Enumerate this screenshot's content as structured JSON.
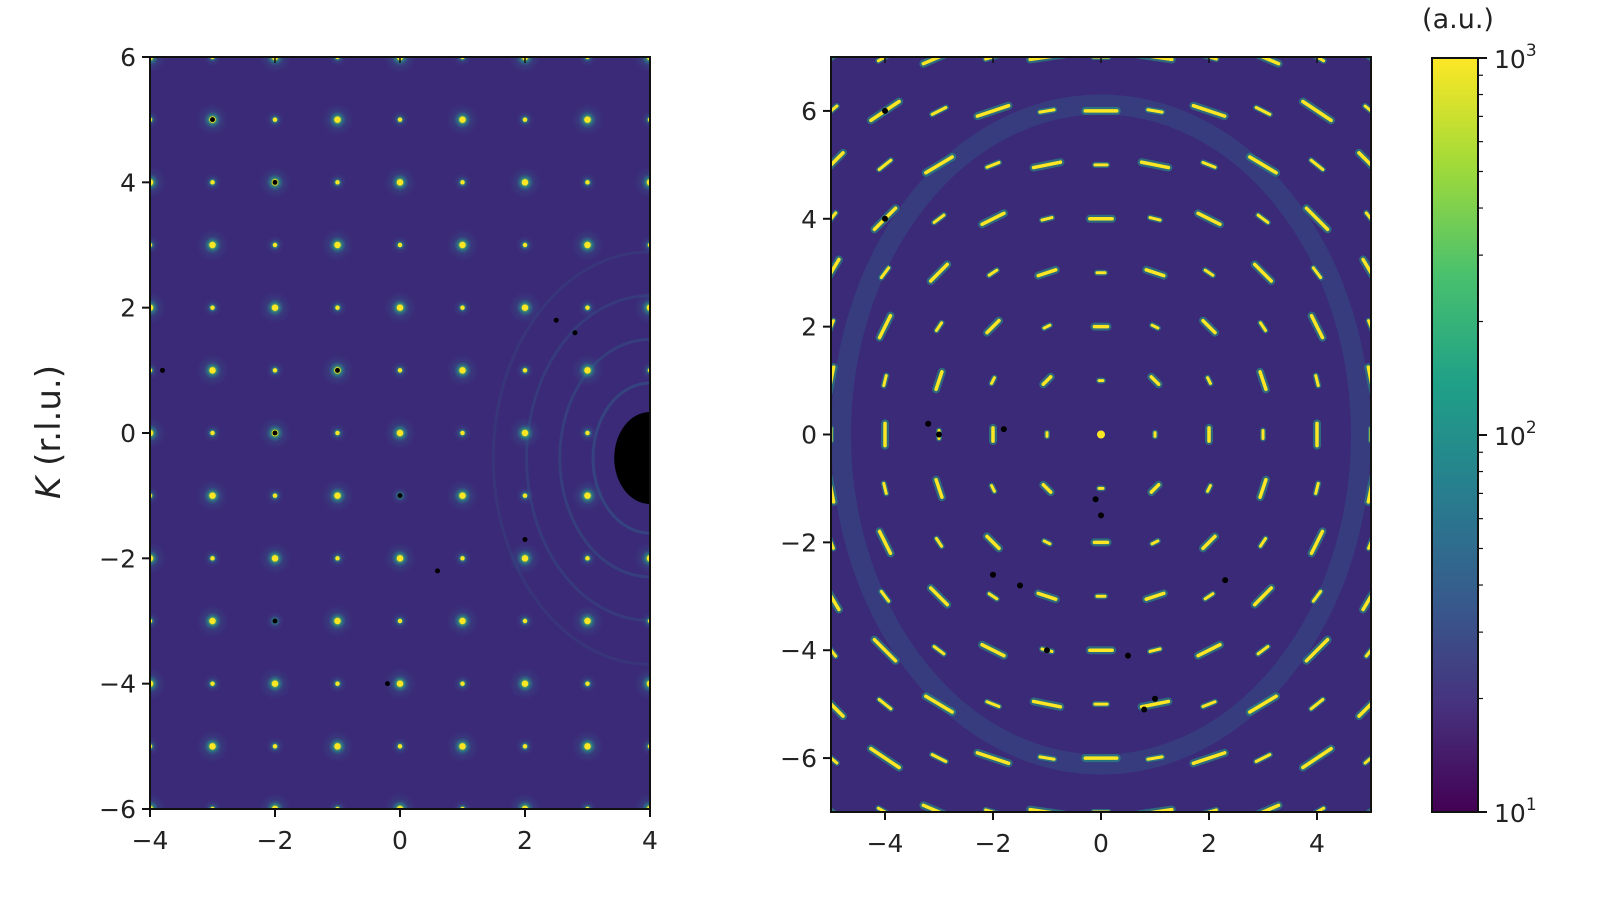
{
  "chart_data": [
    {
      "type": "heatmap",
      "panel": "left",
      "ylabel_italic": "K",
      "ylabel_unit": " (r.l.u.)",
      "xlim": [
        -4,
        4
      ],
      "ylim": [
        -6,
        6
      ],
      "xticks": [
        -4,
        -2,
        0,
        2,
        4
      ],
      "yticks": [
        -6,
        -4,
        -2,
        0,
        2,
        4,
        6
      ],
      "xtick_labels": [
        "−4",
        "−2",
        "0",
        "2",
        "4"
      ],
      "ytick_labels": [
        "−6",
        "−4",
        "−2",
        "0",
        "2",
        "4",
        "6"
      ],
      "background_color": "#3b2a78",
      "description_of_peaks": "Bragg peaks on an integer square lattice, H from -4 to 4, K from -6 to 6",
      "lattice_h": [
        -4,
        -3,
        -2,
        -1,
        0,
        1,
        2,
        3,
        4
      ],
      "lattice_k": [
        -6,
        -5,
        -4,
        -3,
        -2,
        -1,
        0,
        1,
        2,
        3,
        4,
        5,
        6
      ],
      "blocked_region": {
        "h": 4,
        "k": -0.4,
        "shape": "semicircle"
      }
    },
    {
      "type": "heatmap",
      "panel": "right",
      "xlim": [
        -5,
        5
      ],
      "ylim": [
        -7,
        7
      ],
      "xticks": [
        -4,
        -2,
        0,
        2,
        4
      ],
      "yticks": [
        -6,
        -4,
        -2,
        0,
        2,
        4,
        6
      ],
      "xtick_labels": [
        "−4",
        "−2",
        "0",
        "2",
        "4"
      ],
      "ytick_labels": [
        "−6",
        "−4",
        "−2",
        "0",
        "2",
        "4",
        "6"
      ],
      "background_color": "#3b2a78",
      "description_of_peaks": "Azimuthally smeared Bragg peaks on an integer lattice, streaks tangential to circles around origin",
      "lattice_h": [
        -5,
        -4,
        -3,
        -2,
        -1,
        0,
        1,
        2,
        3,
        4,
        5
      ],
      "lattice_k": [
        -7,
        -6,
        -5,
        -4,
        -3,
        -2,
        -1,
        0,
        1,
        2,
        3,
        4,
        5,
        6,
        7
      ]
    }
  ],
  "colorbar": {
    "title": "(a.u.)",
    "scale": "log",
    "range": [
      10,
      1000
    ],
    "ticks": [
      {
        "value": 1000,
        "base": "10",
        "exp": "3"
      },
      {
        "value": 100,
        "base": "10",
        "exp": "2"
      },
      {
        "value": 10,
        "base": "10",
        "exp": "1"
      }
    ],
    "colormap": [
      "#440154",
      "#46327e",
      "#365c8d",
      "#277f8e",
      "#1fa187",
      "#4ac16d",
      "#a0da39",
      "#fde725"
    ]
  },
  "colors": {
    "peak_core": "#fde725",
    "peak_mid": "#7ad151",
    "peak_glow": "#22a884",
    "diffuse": "#2c728e",
    "dark_spot": "#000000"
  }
}
